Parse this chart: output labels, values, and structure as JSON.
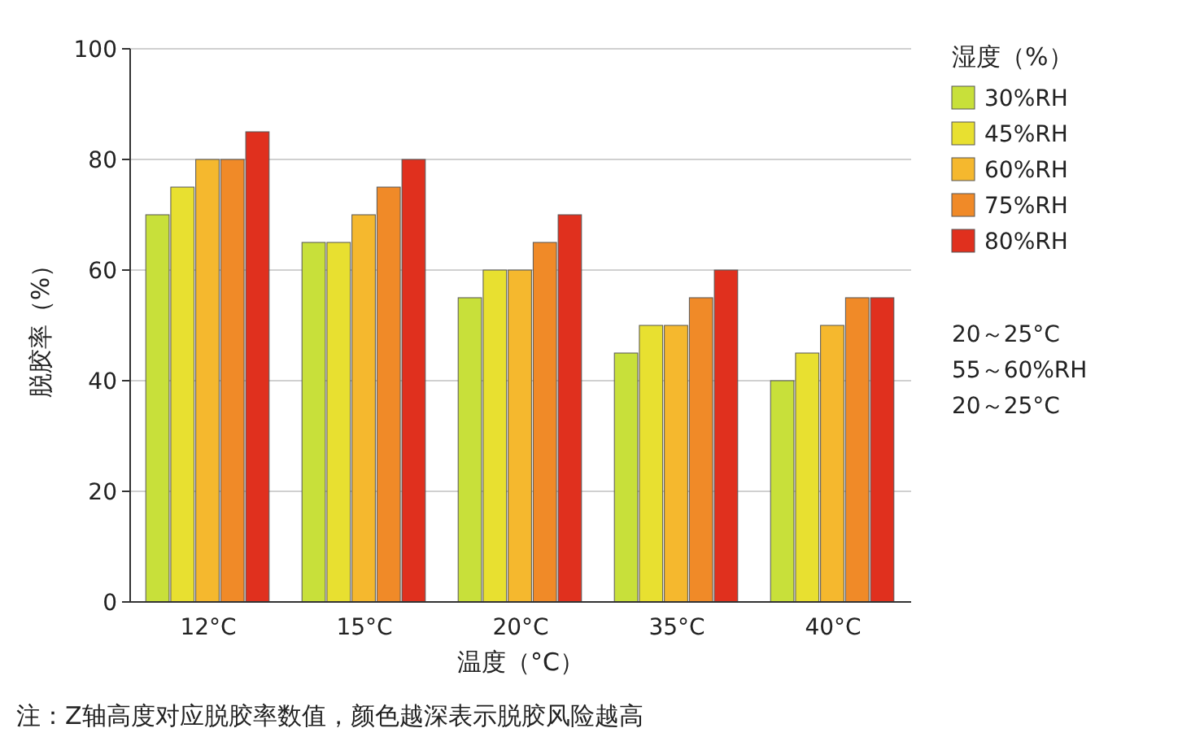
{
  "chart_data": {
    "type": "bar",
    "xlabel": "温度（°C）",
    "ylabel": "脱胶率（%）",
    "legend_title": "湿度（%）",
    "categories": [
      "12°C",
      "15°C",
      "20°C",
      "35°C",
      "40°C"
    ],
    "series": [
      {
        "name": "30%RH",
        "color": "#c8e03a",
        "values": [
          70,
          65,
          55,
          45,
          40
        ]
      },
      {
        "name": "45%RH",
        "color": "#e8e030",
        "values": [
          75,
          65,
          60,
          50,
          45
        ]
      },
      {
        "name": "60%RH",
        "color": "#f5b82e",
        "values": [
          80,
          70,
          60,
          50,
          50
        ]
      },
      {
        "name": "75%RH",
        "color": "#f08a28",
        "values": [
          80,
          75,
          65,
          55,
          55
        ]
      },
      {
        "name": "80%RH",
        "color": "#e0301e",
        "values": [
          85,
          80,
          70,
          60,
          55
        ]
      }
    ],
    "ylim": [
      0,
      100
    ],
    "yticks": [
      0,
      20,
      40,
      60,
      80,
      100
    ],
    "grid": "y",
    "legend": "right",
    "annotations": [
      "20～25°C",
      "55～60%RH",
      "20～25°C",
      "注：Z轴高度对应脱胶率数值，颜色越深表示脱胶风险越高"
    ]
  }
}
